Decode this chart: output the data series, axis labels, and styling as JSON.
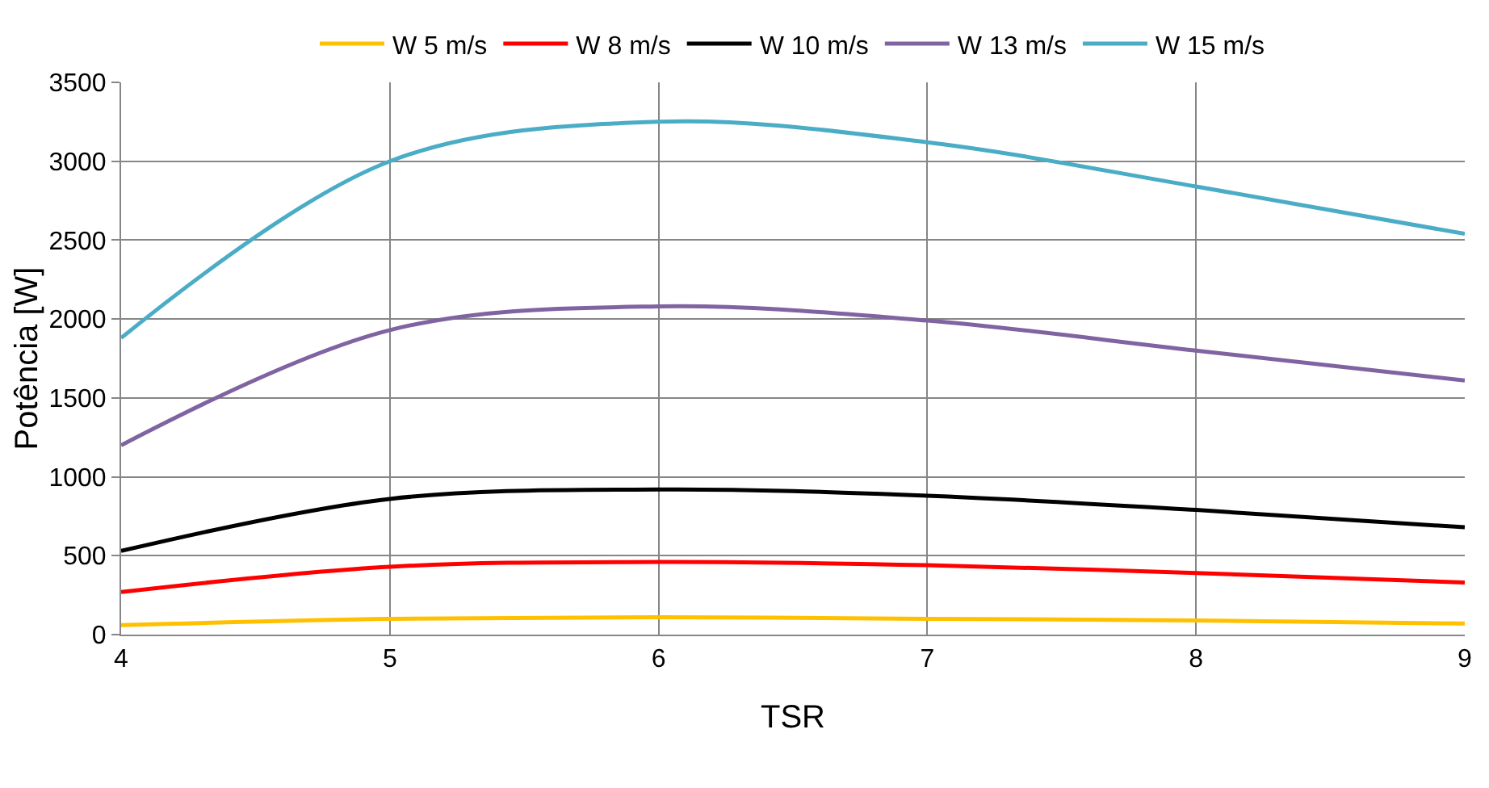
{
  "chart_data": {
    "type": "line",
    "xlabel": "TSR",
    "ylabel": "Potência [W]",
    "x": [
      4,
      5,
      6,
      7,
      8,
      9
    ],
    "series": [
      {
        "name": "W 5 m/s",
        "color": "#ffc000",
        "values": [
          60,
          100,
          110,
          100,
          90,
          70
        ]
      },
      {
        "name": "W 8 m/s",
        "color": "#ff0000",
        "values": [
          270,
          430,
          460,
          440,
          390,
          330
        ]
      },
      {
        "name": "W 10 m/s",
        "color": "#000000",
        "values": [
          530,
          860,
          920,
          880,
          790,
          680
        ]
      },
      {
        "name": "W 13 m/s",
        "color": "#8064a2",
        "values": [
          1200,
          1930,
          2080,
          1990,
          1800,
          1610
        ]
      },
      {
        "name": "W 15 m/s",
        "color": "#4bacc6",
        "values": [
          1880,
          3000,
          3250,
          3120,
          2840,
          2540
        ]
      }
    ],
    "xlim": [
      4,
      9
    ],
    "xticks": [
      4,
      5,
      6,
      7,
      8,
      9
    ],
    "ylim": [
      0,
      3500
    ],
    "yticks": [
      0,
      500,
      1000,
      1500,
      2000,
      2500,
      3000,
      3500
    ],
    "grid": true,
    "legend": "top",
    "marker": "none",
    "line_style": "solid"
  }
}
